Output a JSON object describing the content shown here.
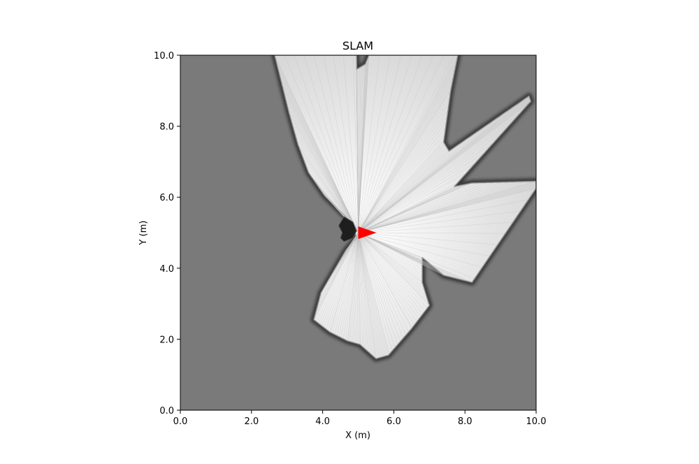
{
  "chart_data": {
    "type": "heatmap",
    "title": "SLAM",
    "xlabel": "X (m)",
    "ylabel": "Y (m)",
    "xlim": [
      0,
      10
    ],
    "ylim": [
      0,
      10
    ],
    "xticks": [
      "0.0",
      "2.0",
      "4.0",
      "6.0",
      "8.0",
      "10.0"
    ],
    "yticks": [
      "0.0",
      "2.0",
      "4.0",
      "6.0",
      "8.0",
      "10.0"
    ],
    "grid": false,
    "colormap": "gray",
    "unknown_color": "#7a7a7a",
    "robot": {
      "x": 5.0,
      "y": 5.0,
      "heading_deg": 0,
      "color": "#ff0000"
    },
    "scan_boundary": [
      [
        4.85,
        5.25
      ],
      [
        4.5,
        5.6
      ],
      [
        4.05,
        6.05
      ],
      [
        3.6,
        6.7
      ],
      [
        3.3,
        7.5
      ],
      [
        3.05,
        8.4
      ],
      [
        2.85,
        9.2
      ],
      [
        2.65,
        10.0
      ],
      [
        4.95,
        10.0
      ],
      [
        4.95,
        9.6
      ],
      [
        5.2,
        9.75
      ],
      [
        5.3,
        10.0
      ],
      [
        7.8,
        10.0
      ],
      [
        7.6,
        9.0
      ],
      [
        7.4,
        7.55
      ],
      [
        7.55,
        7.3
      ],
      [
        9.8,
        8.85
      ],
      [
        9.85,
        8.7
      ],
      [
        7.7,
        6.3
      ],
      [
        8.2,
        6.4
      ],
      [
        10.0,
        6.45
      ],
      [
        10.0,
        6.25
      ],
      [
        8.2,
        3.6
      ],
      [
        7.4,
        3.8
      ],
      [
        6.8,
        4.3
      ],
      [
        6.8,
        3.6
      ],
      [
        7.0,
        2.95
      ],
      [
        6.5,
        2.3
      ],
      [
        5.85,
        1.55
      ],
      [
        5.5,
        1.45
      ],
      [
        5.05,
        1.85
      ],
      [
        4.7,
        1.95
      ],
      [
        4.2,
        2.2
      ],
      [
        3.75,
        2.55
      ],
      [
        3.95,
        3.3
      ],
      [
        4.3,
        3.9
      ],
      [
        4.65,
        4.5
      ],
      [
        4.95,
        4.85
      ]
    ],
    "obstacle_blob": [
      [
        4.55,
        5.0
      ],
      [
        4.45,
        5.2
      ],
      [
        4.6,
        5.45
      ],
      [
        4.85,
        5.3
      ],
      [
        4.95,
        5.05
      ],
      [
        4.85,
        4.85
      ],
      [
        4.6,
        4.75
      ],
      [
        4.5,
        4.85
      ]
    ]
  }
}
